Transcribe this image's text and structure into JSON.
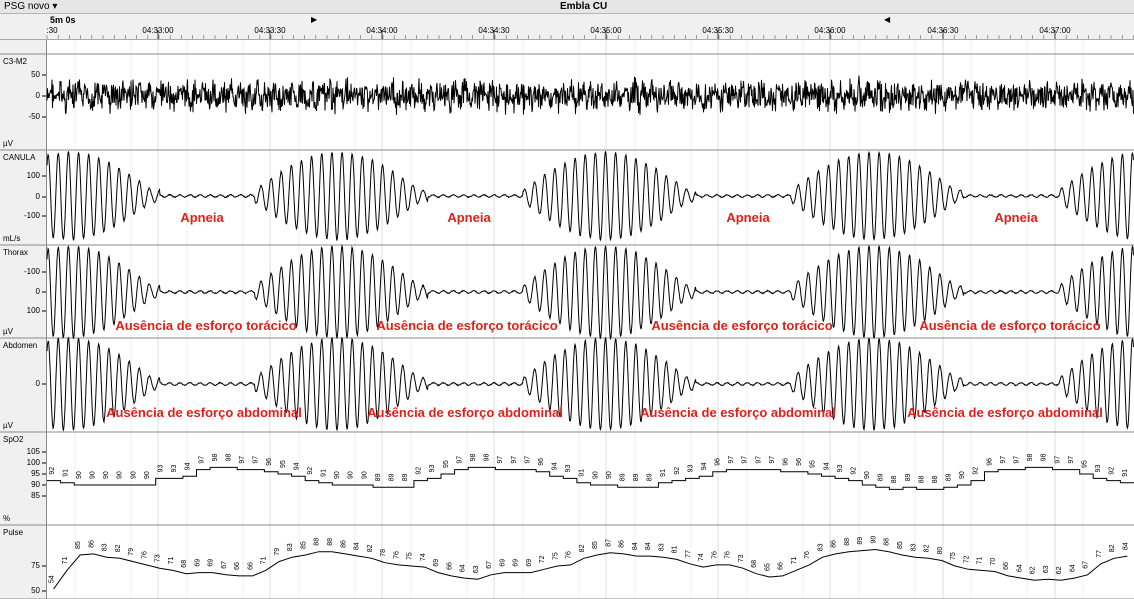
{
  "window": {
    "profile_menu": "PSG novo ▾",
    "title": "Embla CU"
  },
  "timeline": {
    "epoch": "5m 0s",
    "start_fragment": ":30",
    "ticks": [
      "04:33:00",
      "04:33:30",
      "04:34:00",
      "04:34:30",
      "04:35:00",
      "04:35:30",
      "04:36:00",
      "04:36:30",
      "04:37:00"
    ],
    "marker_right": "▶",
    "marker_left": "◀"
  },
  "channels": [
    {
      "name": "C3-M2",
      "unit": "µV",
      "ticks": [
        "50",
        "0",
        "-50"
      ]
    },
    {
      "name": "CANULA",
      "unit": "mL/s",
      "ticks": [
        "100",
        "0",
        "-100"
      ]
    },
    {
      "name": "Thorax",
      "unit": "µV",
      "ticks": [
        "-100",
        "0",
        "100"
      ]
    },
    {
      "name": "Abdomen",
      "unit": "µV",
      "ticks": [
        "0"
      ]
    },
    {
      "name": "SpO2",
      "unit": "%",
      "ticks": [
        "105",
        "100",
        "95",
        "90",
        "85"
      ]
    },
    {
      "name": "Pulse",
      "unit": "",
      "ticks": [
        "75",
        "50"
      ]
    }
  ],
  "annotations": {
    "apnea": [
      "Apneia",
      "Apneia",
      "Apneia",
      "Apneia"
    ],
    "thoracic": [
      "Ausência de esforço torácico",
      "Ausência de esforço torácico",
      "Ausência de esforço torácico",
      "Ausência de esforço torácico"
    ],
    "abdominal": [
      "Ausência de esforço abdominal",
      "Ausência de esforço abdominal",
      "Ausência de esforço abdominal",
      "Ausência de esforço abdominal"
    ]
  },
  "spo2_values": [
    92,
    91,
    90,
    90,
    90,
    90,
    90,
    90,
    93,
    93,
    94,
    97,
    98,
    98,
    97,
    97,
    96,
    95,
    94,
    92,
    91,
    90,
    90,
    90,
    89,
    89,
    89,
    92,
    93,
    95,
    97,
    98,
    98,
    97,
    97,
    97,
    96,
    94,
    93,
    91,
    90,
    90,
    89,
    89,
    89,
    91,
    92,
    93,
    94,
    96,
    97,
    97,
    97,
    97,
    96,
    96,
    95,
    94,
    93,
    92,
    90,
    89,
    88,
    89,
    88,
    88,
    89,
    90,
    92,
    96,
    97,
    97,
    98,
    98,
    97,
    97,
    95,
    93,
    92,
    91
  ],
  "pulse_values": [
    54,
    71,
    85,
    86,
    83,
    82,
    79,
    76,
    73,
    71,
    68,
    69,
    69,
    67,
    66,
    66,
    71,
    79,
    83,
    85,
    88,
    88,
    86,
    84,
    82,
    78,
    76,
    75,
    74,
    69,
    66,
    64,
    63,
    67,
    69,
    69,
    69,
    72,
    75,
    76,
    82,
    85,
    87,
    86,
    84,
    84,
    83,
    81,
    77,
    74,
    76,
    76,
    73,
    68,
    65,
    66,
    71,
    76,
    83,
    86,
    88,
    89,
    90,
    88,
    85,
    83,
    82,
    80,
    75,
    72,
    71,
    70,
    66,
    64,
    62,
    63,
    62,
    64,
    67,
    77,
    82,
    84
  ]
}
